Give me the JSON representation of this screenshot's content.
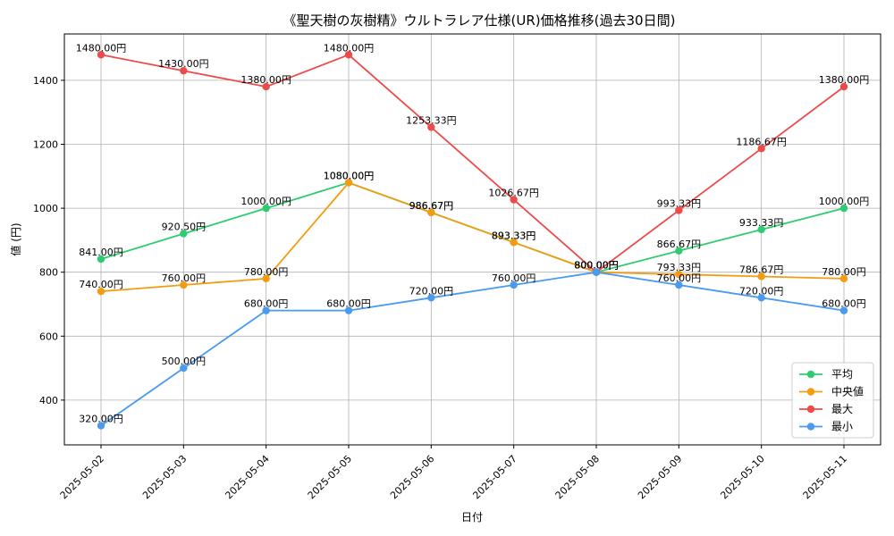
{
  "chart_data": {
    "type": "line",
    "title": "《聖天樹の灰樹精》ウルトラレア仕様(UR)価格推移(過去30日間)",
    "xlabel": "日付",
    "ylabel": "値 (円)",
    "ylim": [
      260,
      1545
    ],
    "yticks": [
      400,
      600,
      800,
      1000,
      1200,
      1400
    ],
    "categories": [
      "2025-05-02",
      "2025-05-03",
      "2025-05-04",
      "2025-05-05",
      "2025-05-06",
      "2025-05-07",
      "2025-05-08",
      "2025-05-09",
      "2025-05-10",
      "2025-05-11"
    ],
    "grid": true,
    "legend_position": "lower-right",
    "value_suffix": "円",
    "series": [
      {
        "name": "平均",
        "color": "#2ecc71",
        "values": [
          841.0,
          920.5,
          1000.0,
          1080.0,
          986.67,
          893.33,
          800.0,
          866.67,
          933.33,
          1000.0
        ]
      },
      {
        "name": "中央値",
        "color": "#f39c12",
        "values": [
          740.0,
          760.0,
          780.0,
          1080.0,
          986.67,
          893.33,
          800.0,
          793.33,
          786.67,
          780.0
        ]
      },
      {
        "name": "最大",
        "color": "#ef4a4a",
        "values": [
          1480.0,
          1430.0,
          1380.0,
          1480.0,
          1253.33,
          1026.67,
          800.0,
          993.33,
          1186.67,
          1380.0
        ]
      },
      {
        "name": "最小",
        "color": "#4a9af0",
        "values": [
          320.0,
          500.0,
          680.0,
          680.0,
          720.0,
          760.0,
          800.0,
          760.0,
          720.0,
          680.0
        ]
      }
    ]
  }
}
